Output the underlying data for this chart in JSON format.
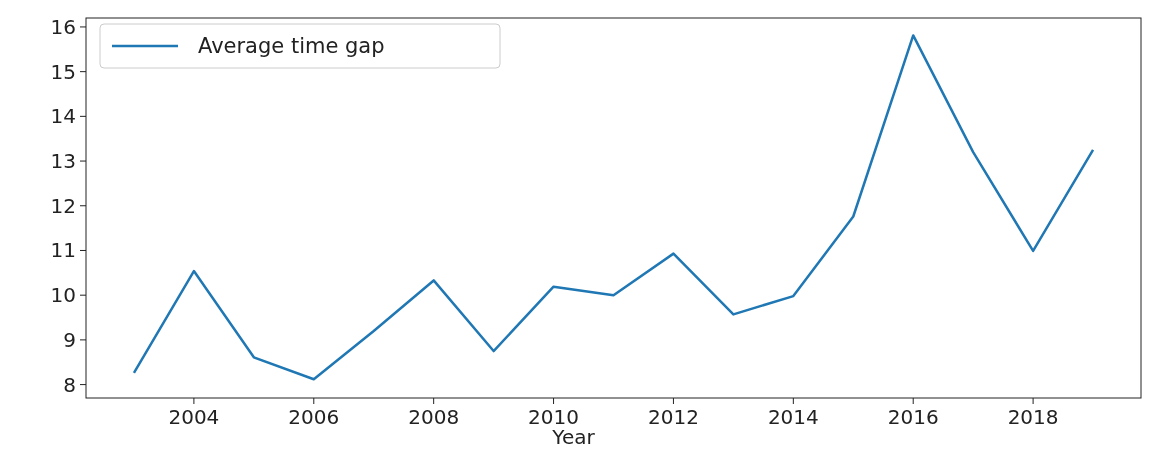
{
  "chart_data": {
    "type": "line",
    "xlabel": "Year",
    "x": [
      2003,
      2004,
      2005,
      2006,
      2007,
      2008,
      2009,
      2010,
      2011,
      2012,
      2013,
      2014,
      2015,
      2016,
      2017,
      2018,
      2019
    ],
    "series": [
      {
        "name": "Average time gap",
        "color": "#1f77b4",
        "values": [
          8.26,
          10.54,
          8.61,
          8.12,
          9.2,
          10.33,
          8.75,
          10.19,
          10.0,
          10.93,
          9.57,
          9.98,
          11.76,
          15.81,
          13.2,
          10.99,
          13.25
        ]
      }
    ],
    "xlim": [
      2002.2,
      2019.8
    ],
    "xticks": [
      2004,
      2006,
      2008,
      2010,
      2012,
      2014,
      2016,
      2018
    ],
    "ylim": [
      7.7,
      16.2
    ],
    "yticks": [
      8,
      9,
      10,
      11,
      12,
      13,
      14,
      15,
      16
    ],
    "legend": "top left",
    "grid": false
  }
}
